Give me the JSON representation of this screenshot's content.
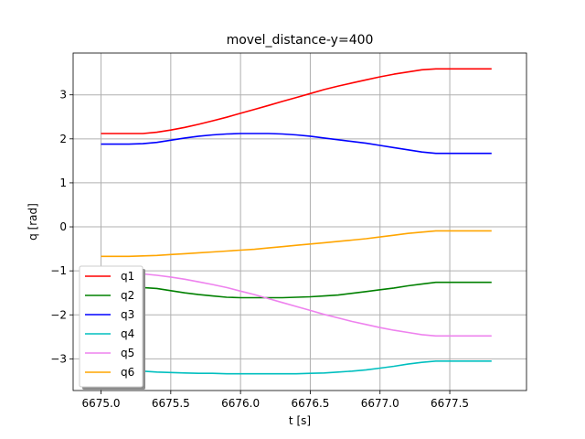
{
  "chart_data": {
    "type": "line",
    "title": "movel_distance-y=400",
    "xlabel": "t [s]",
    "ylabel": "q [rad]",
    "xlim": [
      6674.8,
      6678.05
    ],
    "ylim": [
      -3.72,
      3.95
    ],
    "xticks": [
      6675.0,
      6675.5,
      6676.0,
      6676.5,
      6677.0,
      6677.5
    ],
    "xtick_labels": [
      "6675.0",
      "6675.5",
      "6676.0",
      "6676.5",
      "6677.0",
      "6677.5"
    ],
    "yticks": [
      -3,
      -2,
      -1,
      0,
      1,
      2,
      3
    ],
    "ytick_labels": [
      "−3",
      "−2",
      "−1",
      "0",
      "1",
      "2",
      "3"
    ],
    "grid": true,
    "legend_position": "lower-left",
    "x": [
      6675.0,
      6675.1,
      6675.2,
      6675.3,
      6675.4,
      6675.5,
      6675.6,
      6675.7,
      6675.8,
      6675.9,
      6676.0,
      6676.1,
      6676.2,
      6676.3,
      6676.4,
      6676.5,
      6676.6,
      6676.7,
      6676.8,
      6676.9,
      6677.0,
      6677.1,
      6677.2,
      6677.3,
      6677.4,
      6677.5,
      6677.6,
      6677.7,
      6677.8
    ],
    "series": [
      {
        "name": "q1",
        "color": "#ff0000",
        "values": [
          2.12,
          2.12,
          2.12,
          2.12,
          2.15,
          2.2,
          2.26,
          2.33,
          2.41,
          2.49,
          2.58,
          2.67,
          2.76,
          2.85,
          2.94,
          3.03,
          3.12,
          3.2,
          3.27,
          3.34,
          3.41,
          3.47,
          3.52,
          3.57,
          3.59,
          3.59,
          3.59,
          3.59,
          3.59
        ]
      },
      {
        "name": "q2",
        "color": "#008000",
        "values": [
          -1.37,
          -1.37,
          -1.37,
          -1.38,
          -1.4,
          -1.45,
          -1.5,
          -1.54,
          -1.57,
          -1.6,
          -1.61,
          -1.61,
          -1.61,
          -1.61,
          -1.6,
          -1.59,
          -1.57,
          -1.55,
          -1.51,
          -1.47,
          -1.43,
          -1.39,
          -1.34,
          -1.3,
          -1.26,
          -1.26,
          -1.26,
          -1.26,
          -1.26
        ]
      },
      {
        "name": "q3",
        "color": "#0000ff",
        "values": [
          1.88,
          1.88,
          1.88,
          1.89,
          1.92,
          1.97,
          2.02,
          2.06,
          2.09,
          2.11,
          2.12,
          2.12,
          2.12,
          2.11,
          2.09,
          2.06,
          2.02,
          1.98,
          1.94,
          1.9,
          1.85,
          1.8,
          1.75,
          1.7,
          1.67,
          1.67,
          1.67,
          1.67,
          1.67
        ]
      },
      {
        "name": "q4",
        "color": "#00bfbf",
        "values": [
          -3.27,
          -3.27,
          -3.27,
          -3.28,
          -3.3,
          -3.31,
          -3.32,
          -3.33,
          -3.33,
          -3.34,
          -3.34,
          -3.34,
          -3.34,
          -3.34,
          -3.34,
          -3.33,
          -3.32,
          -3.3,
          -3.28,
          -3.25,
          -3.21,
          -3.17,
          -3.12,
          -3.08,
          -3.05,
          -3.05,
          -3.05,
          -3.05,
          -3.05
        ]
      },
      {
        "name": "q5",
        "color": "#ee82ee",
        "values": [
          -1.06,
          -1.06,
          -1.06,
          -1.07,
          -1.1,
          -1.14,
          -1.19,
          -1.25,
          -1.31,
          -1.38,
          -1.46,
          -1.54,
          -1.63,
          -1.72,
          -1.81,
          -1.9,
          -1.99,
          -2.07,
          -2.15,
          -2.22,
          -2.29,
          -2.35,
          -2.4,
          -2.45,
          -2.48,
          -2.48,
          -2.48,
          -2.48,
          -2.48
        ]
      },
      {
        "name": "q6",
        "color": "#ffa500",
        "values": [
          -0.67,
          -0.67,
          -0.67,
          -0.66,
          -0.65,
          -0.63,
          -0.61,
          -0.59,
          -0.57,
          -0.55,
          -0.53,
          -0.51,
          -0.48,
          -0.45,
          -0.42,
          -0.39,
          -0.36,
          -0.33,
          -0.3,
          -0.27,
          -0.23,
          -0.19,
          -0.15,
          -0.12,
          -0.09,
          -0.09,
          -0.09,
          -0.09,
          -0.09
        ]
      }
    ]
  }
}
